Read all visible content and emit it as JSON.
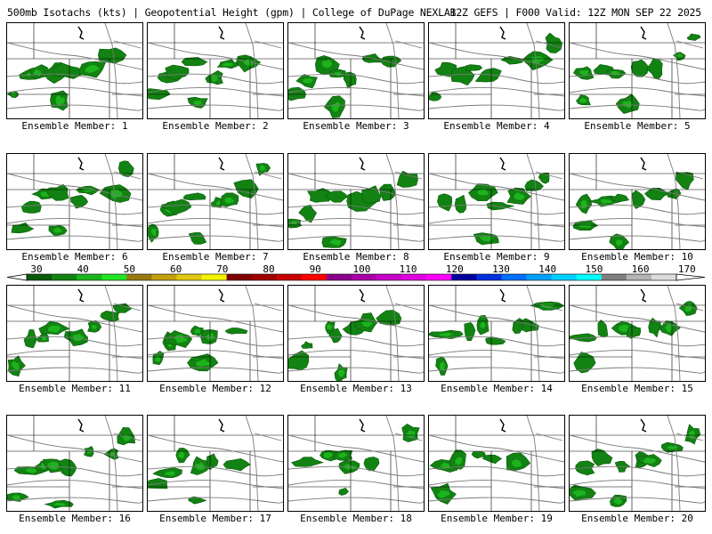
{
  "header": {
    "left": "500mb Isotachs (kts) | Geopotential Height (gpm) | College of DuPage NEXLAB",
    "right": "12Z GEFS | F000 Valid: 12Z MON SEP 22 2025"
  },
  "colorbar": {
    "tick_labels": [
      "30",
      "40",
      "50",
      "60",
      "70",
      "80",
      "90",
      "100",
      "110",
      "120",
      "130",
      "140",
      "150",
      "160",
      "170"
    ],
    "colors": [
      "#0a5a0a",
      "#128212",
      "#1cb41c",
      "#22e422",
      "#9a7a10",
      "#c2a010",
      "#e2c810",
      "#f4f400",
      "#800000",
      "#a00000",
      "#c80000",
      "#ff0000",
      "#8a008a",
      "#a800a8",
      "#c800c8",
      "#e000e0",
      "#ff00ff",
      "#0000a0",
      "#0030e0",
      "#0070ff",
      "#00a0ff",
      "#00d0ff",
      "#00ffff",
      "#808080",
      "#b4b4b4",
      "#dcdcdc"
    ]
  },
  "members": [
    {
      "label": "Ensemble Member: 1"
    },
    {
      "label": "Ensemble Member: 2"
    },
    {
      "label": "Ensemble Member: 3"
    },
    {
      "label": "Ensemble Member: 4"
    },
    {
      "label": "Ensemble Member: 5"
    },
    {
      "label": "Ensemble Member: 6"
    },
    {
      "label": "Ensemble Member: 7"
    },
    {
      "label": "Ensemble Member: 8"
    },
    {
      "label": "Ensemble Member: 9"
    },
    {
      "label": "Ensemble Member: 10"
    },
    {
      "label": "Ensemble Member: 11"
    },
    {
      "label": "Ensemble Member: 12"
    },
    {
      "label": "Ensemble Member: 13"
    },
    {
      "label": "Ensemble Member: 14"
    },
    {
      "label": "Ensemble Member: 15"
    },
    {
      "label": "Ensemble Member: 16"
    },
    {
      "label": "Ensemble Member: 17"
    },
    {
      "label": "Ensemble Member: 18"
    },
    {
      "label": "Ensemble Member: 19"
    },
    {
      "label": "Ensemble Member: 20"
    }
  ]
}
